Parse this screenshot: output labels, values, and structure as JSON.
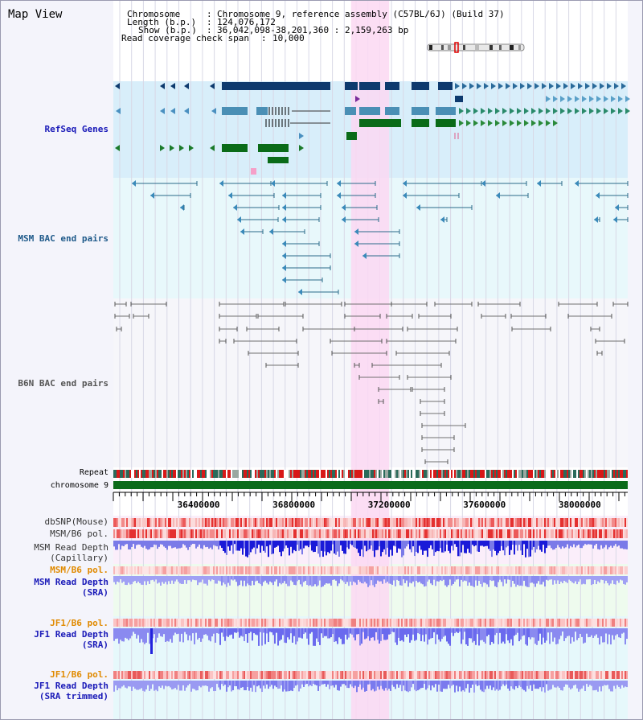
{
  "title": "Map View",
  "info": {
    "chromosome_key": "Chromosome",
    "chromosome_val": "Chromosome 9, reference assembly (C57BL/6J) (Build 37)",
    "length_key": "Length (b.p.)",
    "length_val": "124,076,172",
    "show_key": "Show (b.p.)",
    "show_val": "36,042,098-38,201,360 : 2,159,263 bp",
    "span_key": "Read coverage check span",
    "span_val": "10,000"
  },
  "tracks": {
    "refseq": "RefSeq Genes",
    "msm_bac": "MSM BAC end pairs",
    "b6n_bac": "B6N BAC end pairs",
    "repeat": "Repeat",
    "chromosome": "chromosome 9",
    "dbsnp": "dbSNP(Mouse)",
    "msm_b6_pol_1": "MSM/B6 pol.",
    "msm_depth_cap_1": "MSM Read Depth",
    "msm_depth_cap_2": "(Capillary)",
    "msm_b6_pol_2": "MSM/B6 pol.",
    "msm_depth_sra_1": "MSM Read Depth",
    "msm_depth_sra_2": "(SRA)",
    "jf1_pol_1": "JF1/B6 pol.",
    "jf1_depth_sra_1": "JF1 Read Depth",
    "jf1_depth_sra_2": "(SRA)",
    "jf1_pol_2": "JF1/B6 pol.",
    "jf1_depth_trim_1": "JF1 Read Depth",
    "jf1_depth_trim_2": "(SRA trimmed)"
  },
  "axis": {
    "ticks": [
      "36400000",
      "36800000",
      "37200000",
      "37600000",
      "38000000"
    ],
    "range_bp": [
      36042098,
      38201360
    ]
  },
  "highlight_bp": [
    37040000,
    37200000
  ],
  "colors": {
    "refseq_dark": "#0e3a6e",
    "refseq_mid": "#4a8fb5",
    "refseq_green": "#0a6b18",
    "msm_bac": "#2a6a8a",
    "b6n_bac": "#707070",
    "highlight": "#fbd8f2",
    "depth_dark": "#1a1ad8",
    "depth_light": "#7a7ae8",
    "chrom_green": "#0b6b1a"
  }
}
